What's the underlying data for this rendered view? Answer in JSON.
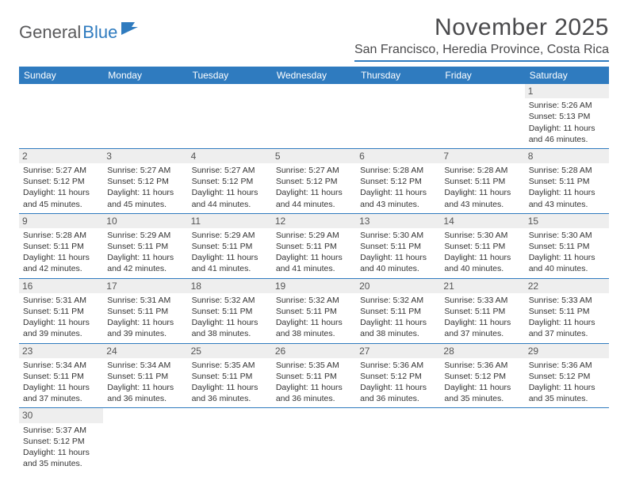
{
  "logo": {
    "text1": "General",
    "text2": "Blue"
  },
  "title": "November 2025",
  "location": "San Francisco, Heredia Province, Costa Rica",
  "colors": {
    "accent": "#2f7bbf",
    "cell_header_bg": "#eeeeee",
    "text": "#333333",
    "title_text": "#4a4a4c",
    "logo_gray": "#59595b"
  },
  "typography": {
    "title_fontsize": 30,
    "location_fontsize": 16,
    "dayheader_fontsize": 12,
    "cell_fontsize": 10.5
  },
  "day_headers": [
    "Sunday",
    "Monday",
    "Tuesday",
    "Wednesday",
    "Thursday",
    "Friday",
    "Saturday"
  ],
  "weeks": [
    [
      null,
      null,
      null,
      null,
      null,
      null,
      {
        "n": "1",
        "sunrise": "5:26 AM",
        "sunset": "5:13 PM",
        "daylight": "11 hours and 46 minutes."
      }
    ],
    [
      {
        "n": "2",
        "sunrise": "5:27 AM",
        "sunset": "5:12 PM",
        "daylight": "11 hours and 45 minutes."
      },
      {
        "n": "3",
        "sunrise": "5:27 AM",
        "sunset": "5:12 PM",
        "daylight": "11 hours and 45 minutes."
      },
      {
        "n": "4",
        "sunrise": "5:27 AM",
        "sunset": "5:12 PM",
        "daylight": "11 hours and 44 minutes."
      },
      {
        "n": "5",
        "sunrise": "5:27 AM",
        "sunset": "5:12 PM",
        "daylight": "11 hours and 44 minutes."
      },
      {
        "n": "6",
        "sunrise": "5:28 AM",
        "sunset": "5:12 PM",
        "daylight": "11 hours and 43 minutes."
      },
      {
        "n": "7",
        "sunrise": "5:28 AM",
        "sunset": "5:11 PM",
        "daylight": "11 hours and 43 minutes."
      },
      {
        "n": "8",
        "sunrise": "5:28 AM",
        "sunset": "5:11 PM",
        "daylight": "11 hours and 43 minutes."
      }
    ],
    [
      {
        "n": "9",
        "sunrise": "5:28 AM",
        "sunset": "5:11 PM",
        "daylight": "11 hours and 42 minutes."
      },
      {
        "n": "10",
        "sunrise": "5:29 AM",
        "sunset": "5:11 PM",
        "daylight": "11 hours and 42 minutes."
      },
      {
        "n": "11",
        "sunrise": "5:29 AM",
        "sunset": "5:11 PM",
        "daylight": "11 hours and 41 minutes."
      },
      {
        "n": "12",
        "sunrise": "5:29 AM",
        "sunset": "5:11 PM",
        "daylight": "11 hours and 41 minutes."
      },
      {
        "n": "13",
        "sunrise": "5:30 AM",
        "sunset": "5:11 PM",
        "daylight": "11 hours and 40 minutes."
      },
      {
        "n": "14",
        "sunrise": "5:30 AM",
        "sunset": "5:11 PM",
        "daylight": "11 hours and 40 minutes."
      },
      {
        "n": "15",
        "sunrise": "5:30 AM",
        "sunset": "5:11 PM",
        "daylight": "11 hours and 40 minutes."
      }
    ],
    [
      {
        "n": "16",
        "sunrise": "5:31 AM",
        "sunset": "5:11 PM",
        "daylight": "11 hours and 39 minutes."
      },
      {
        "n": "17",
        "sunrise": "5:31 AM",
        "sunset": "5:11 PM",
        "daylight": "11 hours and 39 minutes."
      },
      {
        "n": "18",
        "sunrise": "5:32 AM",
        "sunset": "5:11 PM",
        "daylight": "11 hours and 38 minutes."
      },
      {
        "n": "19",
        "sunrise": "5:32 AM",
        "sunset": "5:11 PM",
        "daylight": "11 hours and 38 minutes."
      },
      {
        "n": "20",
        "sunrise": "5:32 AM",
        "sunset": "5:11 PM",
        "daylight": "11 hours and 38 minutes."
      },
      {
        "n": "21",
        "sunrise": "5:33 AM",
        "sunset": "5:11 PM",
        "daylight": "11 hours and 37 minutes."
      },
      {
        "n": "22",
        "sunrise": "5:33 AM",
        "sunset": "5:11 PM",
        "daylight": "11 hours and 37 minutes."
      }
    ],
    [
      {
        "n": "23",
        "sunrise": "5:34 AM",
        "sunset": "5:11 PM",
        "daylight": "11 hours and 37 minutes."
      },
      {
        "n": "24",
        "sunrise": "5:34 AM",
        "sunset": "5:11 PM",
        "daylight": "11 hours and 36 minutes."
      },
      {
        "n": "25",
        "sunrise": "5:35 AM",
        "sunset": "5:11 PM",
        "daylight": "11 hours and 36 minutes."
      },
      {
        "n": "26",
        "sunrise": "5:35 AM",
        "sunset": "5:11 PM",
        "daylight": "11 hours and 36 minutes."
      },
      {
        "n": "27",
        "sunrise": "5:36 AM",
        "sunset": "5:12 PM",
        "daylight": "11 hours and 36 minutes."
      },
      {
        "n": "28",
        "sunrise": "5:36 AM",
        "sunset": "5:12 PM",
        "daylight": "11 hours and 35 minutes."
      },
      {
        "n": "29",
        "sunrise": "5:36 AM",
        "sunset": "5:12 PM",
        "daylight": "11 hours and 35 minutes."
      }
    ],
    [
      {
        "n": "30",
        "sunrise": "5:37 AM",
        "sunset": "5:12 PM",
        "daylight": "11 hours and 35 minutes."
      },
      null,
      null,
      null,
      null,
      null,
      null
    ]
  ],
  "labels": {
    "sunrise": "Sunrise:",
    "sunset": "Sunset:",
    "daylight": "Daylight:"
  }
}
